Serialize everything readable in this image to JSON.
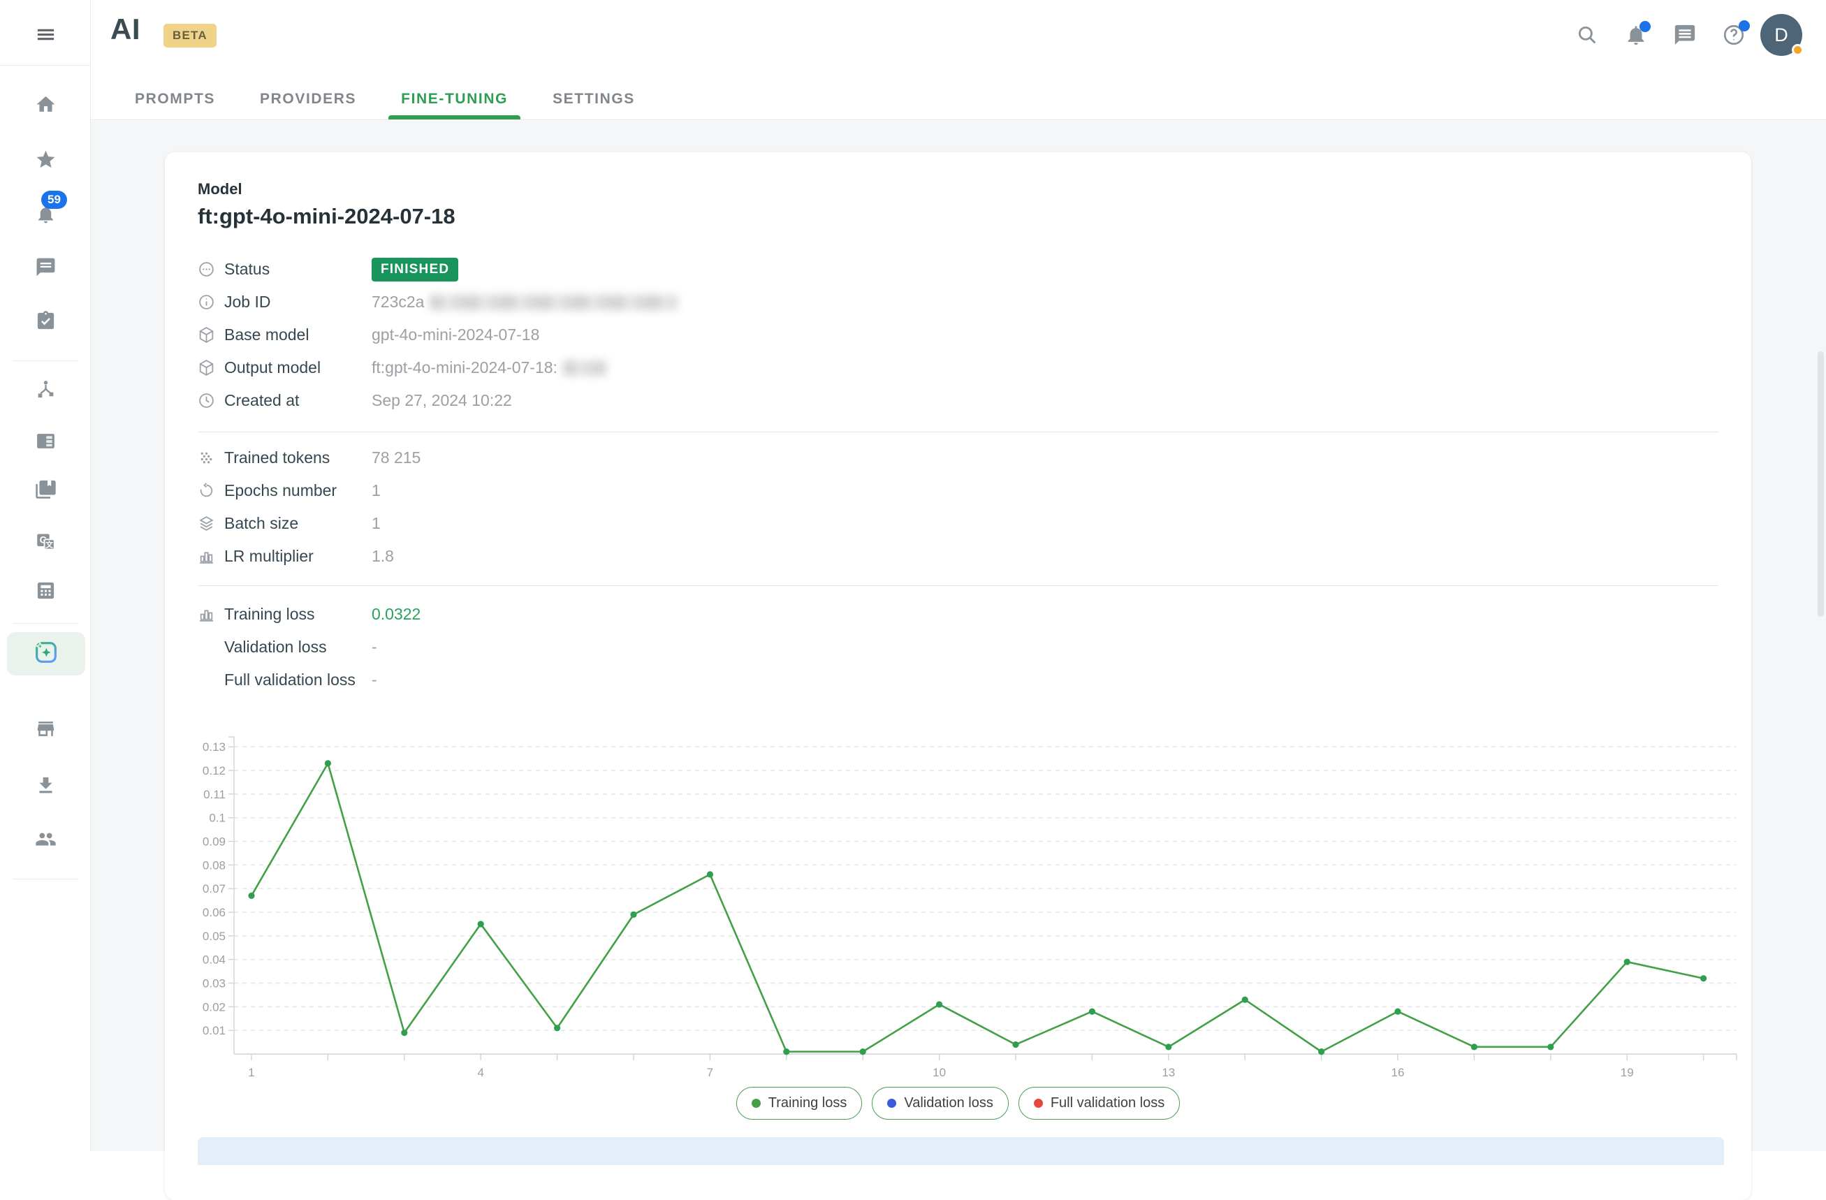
{
  "app": {
    "logo": "AI",
    "beta_badge": "BETA"
  },
  "header": {
    "tabs": [
      {
        "label": "PROMPTS",
        "active": false
      },
      {
        "label": "PROVIDERS",
        "active": false
      },
      {
        "label": "FINE-TUNING",
        "active": true
      },
      {
        "label": "SETTINGS",
        "active": false
      }
    ],
    "icons": [
      "search",
      "notifications",
      "chat",
      "help"
    ],
    "avatar_initial": "D"
  },
  "sidebar": {
    "notification_count": "59",
    "icons": [
      "menu",
      "home",
      "star",
      "notifications",
      "chat",
      "tasks",
      "workflow",
      "panel",
      "library",
      "translate",
      "calculator",
      "ai-sparkle",
      "store",
      "download",
      "users"
    ],
    "active_item": "ai-sparkle"
  },
  "model": {
    "section_label": "Model",
    "name": "ft:gpt-4o-mini-2024-07-18",
    "info": {
      "status": {
        "label": "Status",
        "value": "FINISHED"
      },
      "job_id": {
        "label": "Job ID",
        "value_prefix": "723c2a"
      },
      "base_model": {
        "label": "Base model",
        "value": "gpt-4o-mini-2024-07-18"
      },
      "output_model": {
        "label": "Output model",
        "value_prefix": "ft:gpt-4o-mini-2024-07-18:"
      },
      "created_at": {
        "label": "Created at",
        "value": "Sep 27, 2024 10:22"
      }
    },
    "params": {
      "trained_tokens": {
        "label": "Trained tokens",
        "value": "78 215"
      },
      "epochs": {
        "label": "Epochs number",
        "value": "1"
      },
      "batch_size": {
        "label": "Batch size",
        "value": "1"
      },
      "lr_multiplier": {
        "label": "LR multiplier",
        "value": "1.8"
      }
    },
    "losses": {
      "training": {
        "label": "Training loss",
        "value": "0.0322"
      },
      "validation": {
        "label": "Validation loss",
        "value": "-"
      },
      "full_validation": {
        "label": "Full validation loss",
        "value": "-"
      }
    }
  },
  "chart_data": {
    "type": "line",
    "title": "",
    "xlabel": "",
    "ylabel": "",
    "x": [
      1,
      2,
      3,
      4,
      5,
      6,
      7,
      8,
      9,
      10,
      11,
      12,
      13,
      14,
      15,
      16,
      17,
      18,
      19,
      20
    ],
    "series": [
      {
        "name": "Training loss",
        "color": "#43a047",
        "point_color": "#2f9e4f",
        "values": [
          0.067,
          0.123,
          0.009,
          0.055,
          0.011,
          0.059,
          0.076,
          0.001,
          0.001,
          0.021,
          0.004,
          0.018,
          0.003,
          0.023,
          0.001,
          0.018,
          0.003,
          0.003,
          0.039,
          0.032
        ]
      },
      {
        "name": "Validation loss",
        "color": "#3b5bdb",
        "point_color": "#3b5bdb",
        "values": []
      },
      {
        "name": "Full validation loss",
        "color": "#e5493d",
        "point_color": "#e5493d",
        "values": []
      }
    ],
    "xticks": [
      "1",
      "4",
      "7",
      "10",
      "13",
      "16",
      "19"
    ],
    "yticks": [
      "0.13",
      "0.12",
      "0.11",
      "0.1",
      "0.09",
      "0.08",
      "0.07",
      "0.06",
      "0.05",
      "0.04",
      "0.03",
      "0.02",
      "0.01"
    ],
    "ylim": [
      0,
      0.135
    ],
    "grid": "horizontal-dashed",
    "legend_position": "bottom"
  }
}
